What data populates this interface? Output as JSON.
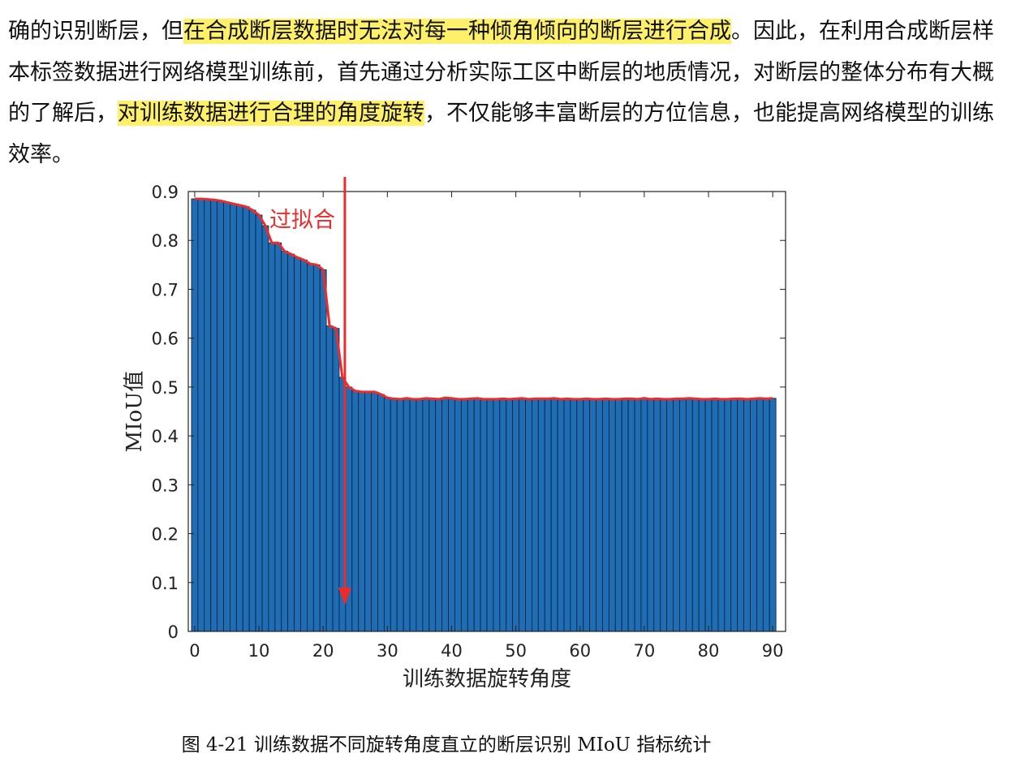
{
  "paragraph": {
    "segments": [
      {
        "text": "确的识别断层，但",
        "highlight": false
      },
      {
        "text": "在合成断层数据时无法对每一种倾角倾向的断层进行合成",
        "highlight": true
      },
      {
        "text": "。因此，在利用合成断层样本标签数据进行网络模型训练前，首先通过分析实际工区中断层的地质情况，对断层的整体分布有大概的了解后，",
        "highlight": false
      },
      {
        "text": "对训练数据进行合理的角度旋转",
        "highlight": true
      },
      {
        "text": "，不仅能够丰富断层的方位信息，也能提高网络模型的训练效率。",
        "highlight": false
      }
    ]
  },
  "chart_data": {
    "type": "bar",
    "xlabel": "训练数据旋转角度",
    "ylabel": "MIoU值",
    "xlim": [
      -1,
      92
    ],
    "ylim": [
      0,
      0.9
    ],
    "xticks": [
      0,
      10,
      20,
      30,
      40,
      50,
      60,
      70,
      80,
      90
    ],
    "yticks": [
      0,
      0.1,
      0.2,
      0.3,
      0.4,
      0.5,
      0.6,
      0.7,
      0.8,
      0.9
    ],
    "ytick_labels": [
      "0",
      "0.1",
      "0.2",
      "0.3",
      "0.4",
      "0.5",
      "0.6",
      "0.7",
      "0.8",
      "0.9"
    ],
    "bar_color": "#1f6db5",
    "line_color": "#ee2b2b",
    "x": [
      0,
      1,
      2,
      3,
      4,
      5,
      6,
      7,
      8,
      9,
      10,
      11,
      12,
      13,
      14,
      15,
      16,
      17,
      18,
      19,
      20,
      21,
      22,
      23,
      24,
      25,
      26,
      27,
      28,
      29,
      30,
      31,
      32,
      33,
      34,
      35,
      36,
      37,
      38,
      39,
      40,
      41,
      42,
      43,
      44,
      45,
      46,
      47,
      48,
      49,
      50,
      51,
      52,
      53,
      54,
      55,
      56,
      57,
      58,
      59,
      60,
      61,
      62,
      63,
      64,
      65,
      66,
      67,
      68,
      69,
      70,
      71,
      72,
      73,
      74,
      75,
      76,
      77,
      78,
      79,
      80,
      81,
      82,
      83,
      84,
      85,
      86,
      87,
      88,
      89,
      90
    ],
    "values": [
      0.885,
      0.885,
      0.884,
      0.883,
      0.881,
      0.878,
      0.875,
      0.872,
      0.869,
      0.862,
      0.852,
      0.83,
      0.795,
      0.795,
      0.778,
      0.772,
      0.765,
      0.76,
      0.752,
      0.75,
      0.74,
      0.625,
      0.62,
      0.52,
      0.5,
      0.492,
      0.49,
      0.49,
      0.49,
      0.485,
      0.478,
      0.476,
      0.475,
      0.477,
      0.475,
      0.475,
      0.477,
      0.476,
      0.475,
      0.478,
      0.477,
      0.475,
      0.475,
      0.476,
      0.477,
      0.475,
      0.475,
      0.475,
      0.476,
      0.475,
      0.476,
      0.477,
      0.475,
      0.476,
      0.476,
      0.476,
      0.477,
      0.475,
      0.476,
      0.475,
      0.475,
      0.476,
      0.475,
      0.475,
      0.476,
      0.475,
      0.475,
      0.476,
      0.476,
      0.475,
      0.477,
      0.475,
      0.476,
      0.475,
      0.475,
      0.476,
      0.476,
      0.477,
      0.476,
      0.475,
      0.475,
      0.476,
      0.475,
      0.475,
      0.476,
      0.476,
      0.475,
      0.476,
      0.477,
      0.476,
      0.477
    ],
    "annotation": {
      "text": "过拟合",
      "x": 23,
      "color": "#ee2b2b"
    }
  },
  "caption": "图 4-21 训练数据不同旋转角度直立的断层识别 MIoU 指标统计"
}
